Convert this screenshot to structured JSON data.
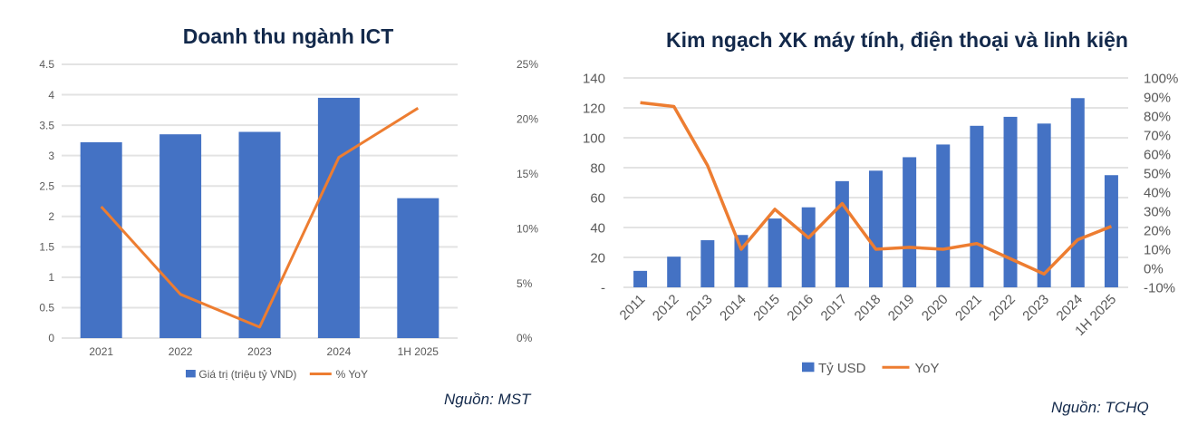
{
  "colors": {
    "bar": "#4472c4",
    "line": "#ed7d31",
    "title": "#13294b",
    "grid": "#e3e3e3",
    "tick": "#595959"
  },
  "chart_data": [
    {
      "type": "bar+line",
      "title": "Doanh thu ngành ICT",
      "source": "Nguồn: MST",
      "categories": [
        "2021",
        "2022",
        "2023",
        "2024",
        "1H 2025"
      ],
      "series": [
        {
          "name": "Giá trị (triệu tỷ VND)",
          "type": "bar",
          "axis": "left",
          "values": [
            3.22,
            3.35,
            3.39,
            3.95,
            2.3
          ]
        },
        {
          "name": "% YoY",
          "type": "line",
          "axis": "right",
          "values": [
            12,
            4,
            1,
            16.5,
            21
          ]
        }
      ],
      "ylim": [
        0,
        4.5
      ],
      "yticks": [
        "0",
        "0.5",
        "1",
        "1.5",
        "2",
        "2.5",
        "3",
        "3.5",
        "4",
        "4.5"
      ],
      "y2lim": [
        0,
        25
      ],
      "y2ticks": [
        "0%",
        "5%",
        "10%",
        "15%",
        "20%",
        "25%"
      ],
      "grid": true,
      "legend": "bottom"
    },
    {
      "type": "bar+line",
      "title": "Kim ngạch XK máy tính, điện thoại và linh kiện",
      "source": "Nguồn: TCHQ",
      "categories": [
        "2011",
        "2012",
        "2013",
        "2014",
        "2015",
        "2016",
        "2017",
        "2018",
        "2019",
        "2020",
        "2021",
        "2022",
        "2023",
        "2024",
        "1H 2025"
      ],
      "series": [
        {
          "name": "Tỷ USD",
          "type": "bar",
          "axis": "left",
          "values": [
            11,
            20.5,
            31.5,
            35,
            46,
            53.5,
            71,
            78,
            87,
            95.5,
            108,
            114,
            109.5,
            126.5,
            75
          ]
        },
        {
          "name": "YoY",
          "type": "line",
          "axis": "right",
          "values": [
            87,
            85,
            54,
            10,
            31,
            16,
            34,
            10,
            11,
            10,
            13,
            5,
            -3,
            15,
            22
          ]
        }
      ],
      "ylim": [
        0,
        140
      ],
      "yticks": [
        "-",
        "20",
        "40",
        "60",
        "80",
        "100",
        "120",
        "140"
      ],
      "y2lim": [
        -10,
        100
      ],
      "y2ticks": [
        "-10%",
        "0%",
        "10%",
        "20%",
        "30%",
        "40%",
        "50%",
        "60%",
        "70%",
        "80%",
        "90%",
        "100%"
      ],
      "grid": true,
      "legend": "bottom"
    }
  ]
}
